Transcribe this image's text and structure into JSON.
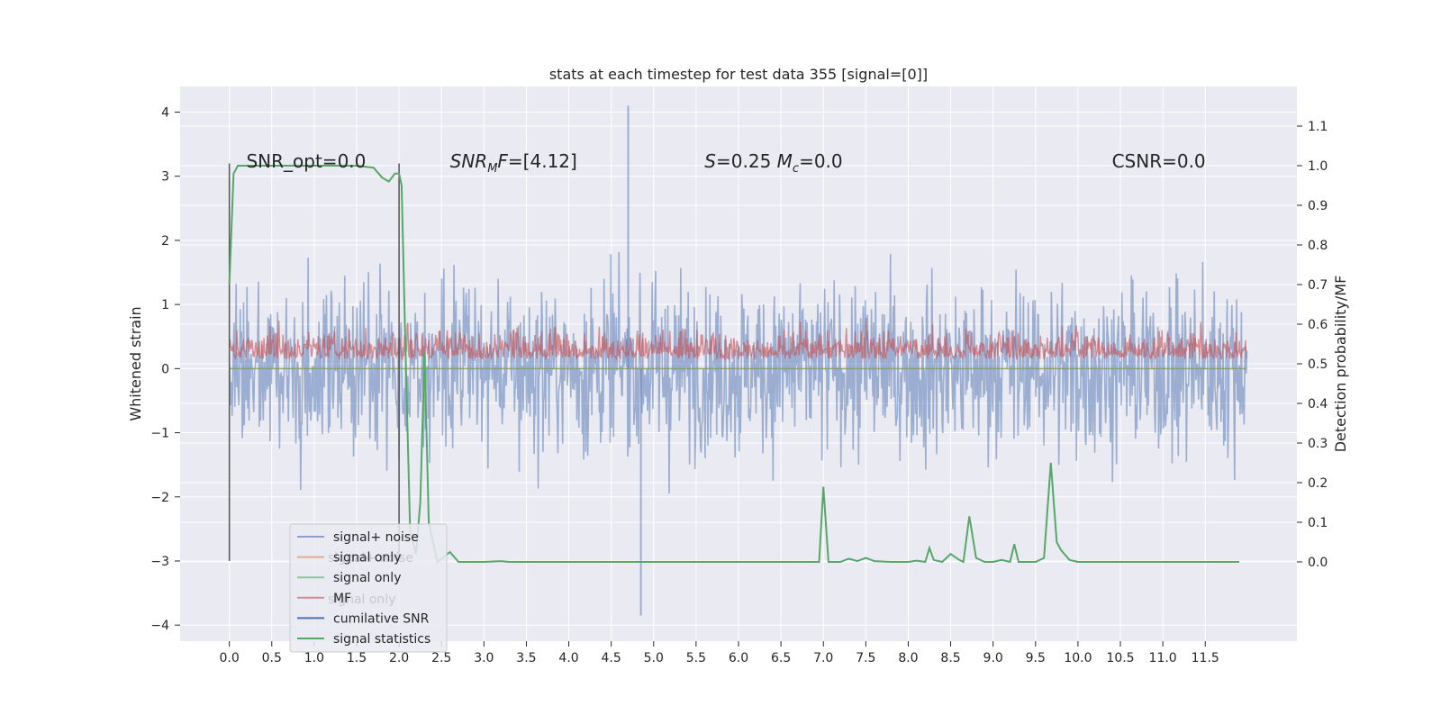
{
  "chart_data": {
    "type": "line",
    "title": "stats at each timestep for test data 355 [signal=[0]]",
    "xlabel": "",
    "ylabel_left": "Whitened strain",
    "ylabel_right": "Detection probability/MF",
    "xlim": [
      -0.58,
      12.58
    ],
    "ylim_left": [
      -4.25,
      4.4
    ],
    "ylim_right": [
      -0.2,
      1.2
    ],
    "x_ticks": [
      0,
      0.5,
      1,
      1.5,
      2,
      2.5,
      3,
      3.5,
      4,
      4.5,
      5,
      5.5,
      6,
      6.5,
      7,
      7.5,
      8,
      8.5,
      9,
      9.5,
      10,
      10.5,
      11,
      11.5
    ],
    "x_tick_labels": [
      "0.0",
      "0.5",
      "1.0",
      "1.5",
      "2.0",
      "2.5",
      "3.0",
      "3.5",
      "4.0",
      "4.5",
      "5.0",
      "5.5",
      "6.0",
      "6.5",
      "7.0",
      "7.5",
      "8.0",
      "8.5",
      "9.0",
      "9.5",
      "10.0",
      "10.5",
      "11.0",
      "11.5"
    ],
    "y_left_ticks": [
      -4,
      -3,
      -2,
      -1,
      0,
      1,
      2,
      3,
      4
    ],
    "y_left_tick_labels": [
      "−4",
      "−3",
      "−2",
      "−1",
      "0",
      "1",
      "2",
      "3",
      "4"
    ],
    "y_right_ticks": [
      0.0,
      0.1,
      0.2,
      0.3,
      0.4,
      0.5,
      0.6,
      0.7,
      0.8,
      0.9,
      1.0,
      1.1
    ],
    "y_right_tick_labels": [
      "0.0",
      "0.1",
      "0.2",
      "0.3",
      "0.4",
      "0.5",
      "0.6",
      "0.7",
      "0.8",
      "0.9",
      "1.0",
      "1.1"
    ],
    "grid": true,
    "legend_position": "lower-left",
    "series": [
      {
        "name": "signal+ noise",
        "color": "#4c72b0",
        "alpha": 0.5,
        "axis": "left",
        "kind": "noise",
        "x_range": [
          0,
          11.99
        ],
        "amplitude": 1.2,
        "peak_max": 4.1,
        "peak_min": -3.85
      },
      {
        "name": "signal only",
        "color": "#dd8452",
        "alpha": 0.6,
        "axis": "left",
        "kind": "flat",
        "value": 0.0
      },
      {
        "name": "signal only",
        "color": "#55a868",
        "alpha": 0.6,
        "axis": "left",
        "kind": "flat",
        "value": 0.0
      },
      {
        "name": "MF",
        "color": "#c44e52",
        "alpha": 0.6,
        "axis": "left",
        "kind": "mf_band",
        "range": [
          0.0,
          1.0
        ]
      },
      {
        "name": "cumilative SNR",
        "color": "#4c72b0",
        "alpha": 1.0,
        "axis": "left",
        "kind": "hidden"
      },
      {
        "name": "signal statistics",
        "color": "#55a868",
        "alpha": 1.0,
        "axis": "right",
        "kind": "line",
        "x": [
          0.0,
          0.05,
          0.1,
          0.5,
          1.0,
          1.5,
          1.7,
          1.8,
          1.88,
          1.95,
          2.0,
          2.03,
          2.08,
          2.13,
          2.2,
          2.25,
          2.3,
          2.35,
          2.45,
          2.6,
          2.7,
          3.0,
          3.2,
          3.3,
          4.0,
          5.0,
          6.0,
          6.5,
          6.8,
          6.95,
          7.0,
          7.06,
          7.1,
          7.2,
          7.3,
          7.4,
          7.5,
          7.6,
          7.8,
          8.0,
          8.1,
          8.2,
          8.25,
          8.3,
          8.4,
          8.5,
          8.6,
          8.65,
          8.72,
          8.8,
          8.9,
          9.0,
          9.1,
          9.2,
          9.25,
          9.3,
          9.4,
          9.5,
          9.6,
          9.68,
          9.75,
          9.8,
          9.9,
          10.0,
          10.5,
          11.0,
          11.5,
          11.9
        ],
        "y": [
          0.7,
          0.98,
          1.0,
          1.0,
          1.0,
          1.0,
          0.995,
          0.97,
          0.96,
          0.98,
          0.98,
          0.95,
          0.5,
          0.08,
          0.02,
          0.15,
          0.53,
          0.1,
          0.0,
          0.025,
          0.0,
          0.0,
          0.002,
          0.0,
          0.0,
          0.0,
          0.0,
          0.0,
          0.0,
          0.0,
          0.19,
          0.0,
          0.0,
          0.0,
          0.008,
          0.002,
          0.01,
          0.002,
          0.0,
          0.0,
          0.003,
          0.0,
          0.035,
          0.005,
          0.0,
          0.02,
          0.005,
          0.0,
          0.115,
          0.01,
          0.0,
          0.0,
          0.005,
          0.0,
          0.045,
          0.0,
          0.0,
          0.0,
          0.01,
          0.25,
          0.05,
          0.03,
          0.005,
          0.0,
          0.0,
          0.0,
          0.0,
          0.0
        ]
      }
    ],
    "vlines": [
      {
        "x": 0.0,
        "y_range": [
          -3.0,
          3.2
        ],
        "color": "#555555"
      },
      {
        "x": 2.0,
        "y_range": [
          -3.0,
          3.2
        ],
        "color": "#555555"
      }
    ],
    "annotations": [
      {
        "text": "SNR_opt=0.0",
        "x": 0.2,
        "y": 3.22
      },
      {
        "text": "SNR_MF=[4.12]",
        "x": 2.6,
        "y": 3.22,
        "rich": "mf"
      },
      {
        "text": "S=0.25   M_c=0.0",
        "x": 5.6,
        "y": 3.22,
        "rich": "smc"
      },
      {
        "text": "CSNR=0.0",
        "x": 10.4,
        "y": 3.22
      }
    ],
    "overlay_text": [
      "signal+ noise",
      "signal only"
    ]
  }
}
